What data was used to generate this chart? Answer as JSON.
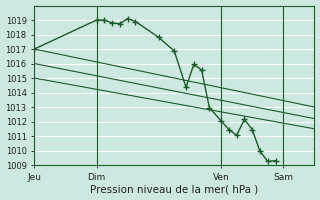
{
  "background_color": "#cce8e0",
  "grid_color": "#ffffff",
  "line_color": "#1a5c28",
  "title": "Pression niveau de la mer( hPa )",
  "xlabel_ticks": [
    "Jeu",
    "Dim",
    "Ven",
    "Sam"
  ],
  "xlabel_tick_positions": [
    0,
    8,
    24,
    32
  ],
  "ylim": [
    1009,
    1020
  ],
  "xlim": [
    0,
    36
  ],
  "yticks": [
    1009,
    1010,
    1011,
    1012,
    1013,
    1014,
    1015,
    1016,
    1017,
    1018,
    1019
  ],
  "series1_x": [
    0,
    8,
    9,
    10,
    11,
    12,
    13,
    16,
    18,
    19.5,
    20.5,
    21.5,
    22.5,
    24,
    25,
    26,
    27,
    28,
    29,
    30,
    31
  ],
  "series1_y": [
    1017.0,
    1019.0,
    1019.0,
    1018.8,
    1018.75,
    1019.1,
    1018.9,
    1017.8,
    1016.85,
    1014.35,
    1015.95,
    1015.55,
    1012.95,
    1012.05,
    1011.45,
    1011.05,
    1012.15,
    1011.45,
    1009.95,
    1009.25,
    1009.3
  ],
  "series2_x": [
    0,
    36
  ],
  "series2_y": [
    1017.0,
    1013.0
  ],
  "series3_x": [
    0,
    36
  ],
  "series3_y": [
    1016.0,
    1012.2
  ],
  "series4_x": [
    0,
    36
  ],
  "series4_y": [
    1015.0,
    1011.5
  ],
  "vline_positions": [
    8,
    24,
    32
  ],
  "marker": "+",
  "markersize": 4,
  "linewidth": 1.0
}
